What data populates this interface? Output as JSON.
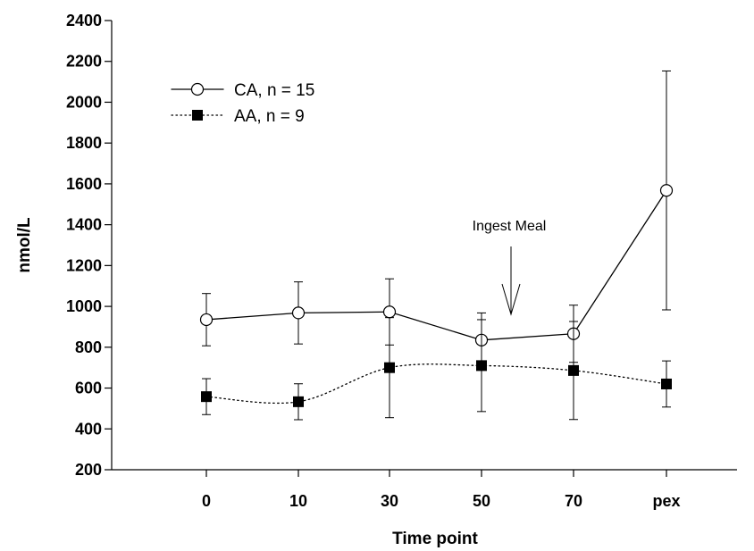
{
  "chart_data": {
    "type": "line",
    "title": "",
    "xlabel": "Time point",
    "ylabel": "nmol/L",
    "categories": [
      "0",
      "10",
      "30",
      "50",
      "70",
      "pex"
    ],
    "ylim": [
      200,
      2400
    ],
    "yticks": [
      200,
      400,
      600,
      800,
      1000,
      1200,
      1400,
      1600,
      1800,
      2000,
      2200,
      2400
    ],
    "grid": false,
    "legend_position": "top-left",
    "series": [
      {
        "name": "CA, n = 15",
        "marker": "open-circle",
        "line_style": "solid",
        "color": "#000000",
        "values": [
          935,
          968,
          973,
          835,
          866,
          1568
        ],
        "error": [
          128,
          152,
          162,
          133,
          140,
          585
        ]
      },
      {
        "name": "AA, n = 9",
        "marker": "filled-square",
        "line_style": "dotted",
        "color": "#000000",
        "values": [
          558,
          533,
          700,
          710,
          686,
          620
        ],
        "error": [
          88,
          88,
          245,
          225,
          240,
          113
        ]
      }
    ],
    "annotations": [
      {
        "text": "Ingest Meal",
        "x_position": 50
      }
    ]
  }
}
